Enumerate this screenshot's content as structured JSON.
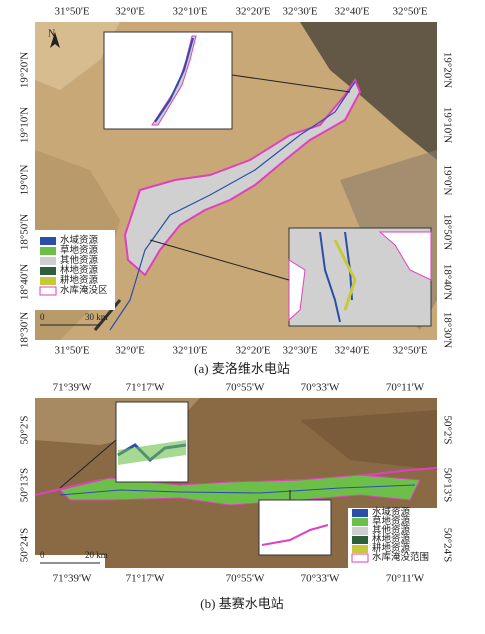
{
  "panels": [
    {
      "caption": "(a) 麦洛维水电站",
      "north": "N",
      "top_labels": [
        "31°50'E",
        "32°0'E",
        "32°10'E",
        "32°20'E",
        "32°30'E",
        "32°40'E",
        "32°50'E"
      ],
      "bottom_labels": [
        "31°50'E",
        "32°0'E",
        "32°10'E",
        "32°20'E",
        "32°30'E",
        "32°40'E",
        "32°50'E"
      ],
      "left_labels": [
        "19°20'N",
        "19°10'N",
        "19°0'N",
        "18°50'N",
        "18°40'N",
        "18°30'N"
      ],
      "right_labels": [
        "19°20'N",
        "19°10'N",
        "19°0'N",
        "18°50'N",
        "18°40'N",
        "18°30'N"
      ],
      "legend": [
        {
          "label": "水域资源",
          "color": "#2b4fa8"
        },
        {
          "label": "草地资源",
          "color": "#6cc04a"
        },
        {
          "label": "其他资源",
          "color": "#cfcfcf"
        },
        {
          "label": "林地资源",
          "color": "#2e5e3a"
        },
        {
          "label": "耕地资源",
          "color": "#c8c83a"
        },
        {
          "label": "水库淹没区",
          "color": "#e040c0"
        }
      ],
      "scale": {
        "zero": "0",
        "distance": "30 km"
      }
    },
    {
      "caption": "(b) 基赛水电站",
      "top_labels": [
        "71°39'W",
        "71°17'W",
        "70°55'W",
        "70°33'W",
        "70°11'W"
      ],
      "bottom_labels": [
        "71°39'W",
        "71°17'W",
        "70°55'W",
        "70°33'W",
        "70°11'W"
      ],
      "left_labels": [
        "50°2'S",
        "50°13'S",
        "50°24'S"
      ],
      "right_labels": [
        "50°2'S",
        "50°13'S",
        "50°24'S"
      ],
      "legend": [
        {
          "label": "水域资源",
          "color": "#2b4fa8"
        },
        {
          "label": "草地资源",
          "color": "#6cc04a"
        },
        {
          "label": "其他资源",
          "color": "#cfcfcf"
        },
        {
          "label": "林地资源",
          "color": "#2e5e3a"
        },
        {
          "label": "耕地资源",
          "color": "#c8c83a"
        },
        {
          "label": "水库淹没范围",
          "color": "#e040c0"
        }
      ],
      "scale": {
        "zero": "0",
        "distance": "20 km"
      }
    }
  ]
}
